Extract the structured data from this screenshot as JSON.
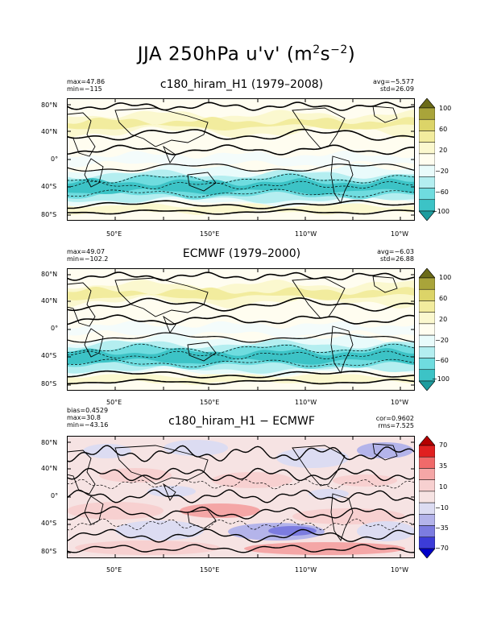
{
  "figure": {
    "title_main": "JJA 250hPa u'v' (m",
    "title_sup1": "2",
    "title_mid": "s",
    "title_sup2": "−2",
    "title_end": ")"
  },
  "panels": [
    {
      "title": "c180_hiram_H1 (1979–2008)",
      "left_stats": [
        "max=47.86",
        "min=−115"
      ],
      "right_stats": [
        "avg=−5.577",
        "std=26.09"
      ],
      "lat_labels": [
        "80°N",
        "40°N",
        "0°",
        "40°S",
        "80°S"
      ],
      "lon_labels": [
        "50°E",
        "150°E",
        "110°W",
        "10°W"
      ],
      "colorbar_labels": [
        "100",
        "60",
        "20",
        "−20",
        "−60",
        "−100"
      ],
      "palette": "wind"
    },
    {
      "title": "ECMWF (1979–2000)",
      "left_stats": [
        "max=49.07",
        "min=−102.2"
      ],
      "right_stats": [
        "avg=−6.03",
        "std=26.88"
      ],
      "lat_labels": [
        "80°N",
        "40°N",
        "0°",
        "40°S",
        "80°S"
      ],
      "lon_labels": [
        "50°E",
        "150°E",
        "110°W",
        "10°W"
      ],
      "colorbar_labels": [
        "100",
        "60",
        "20",
        "−20",
        "−60",
        "−100"
      ],
      "palette": "wind"
    },
    {
      "title": "c180_hiram_H1 − ECMWF",
      "left_stats": [
        "bias=0.4529",
        "max=30.8",
        "min=−43.16"
      ],
      "right_stats": [
        "cor=0.9602",
        "rms=7.525"
      ],
      "lat_labels": [
        "80°N",
        "40°N",
        "0°",
        "40°S",
        "80°S"
      ],
      "lon_labels": [
        "50°E",
        "150°E",
        "110°W",
        "10°W"
      ],
      "colorbar_labels": [
        "70",
        "35",
        "10",
        "−10",
        "−35",
        "−70"
      ],
      "palette": "diff"
    }
  ],
  "colors": {
    "wind_scale": [
      "#6b6b18",
      "#a9a43a",
      "#dcd468",
      "#f2ec9e",
      "#fbf8cf",
      "#fffdf0",
      "#e9fbfb",
      "#b4eef0",
      "#6fdcdf",
      "#3cc3c6",
      "#1e9c9e"
    ],
    "diff_scale": [
      "#b40000",
      "#e02020",
      "#f06a6a",
      "#f4a6a6",
      "#f7d0d0",
      "#f6e3e3",
      "#dcdcf2",
      "#b4b4ea",
      "#7c7ce0",
      "#3c3cd8",
      "#0000c8"
    ]
  }
}
